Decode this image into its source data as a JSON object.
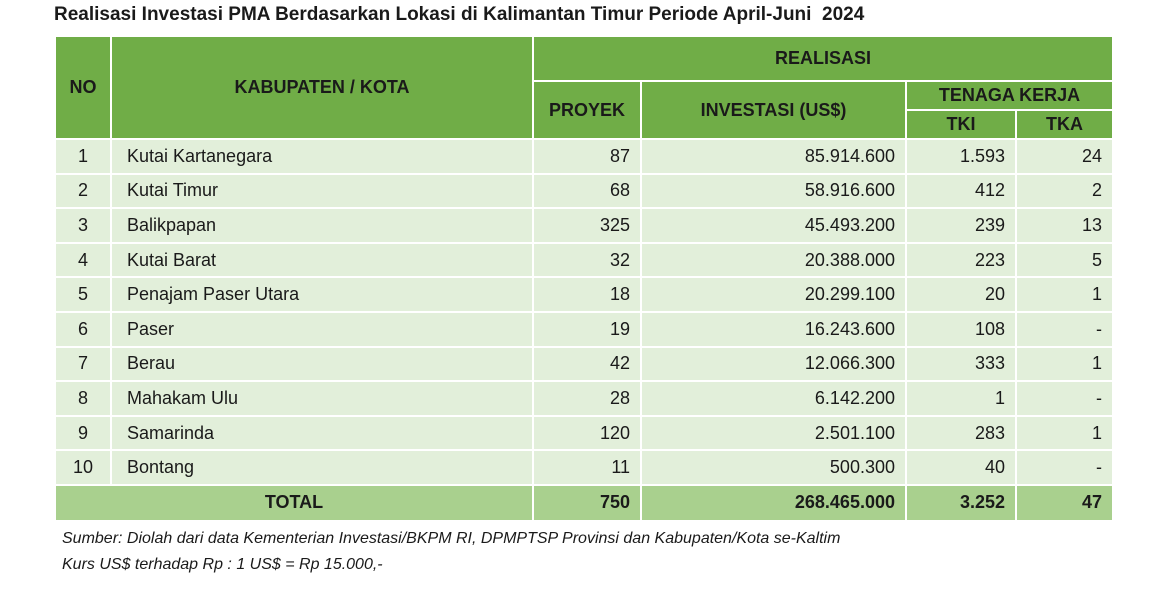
{
  "title": "Realisasi Investasi PMA Berdasarkan Lokasi di Kalimantan Timur Periode April-Juni  2024",
  "headers": {
    "no": "NO",
    "kabupaten": "KABUPATEN / KOTA",
    "realisasi": "REALISASI",
    "proyek": "PROYEK",
    "investasi": "INVESTASI (US$)",
    "tenaga_kerja": "TENAGA KERJA",
    "tki": "TKI",
    "tka": "TKA"
  },
  "rows": [
    {
      "no": "1",
      "name": "Kutai Kartanegara",
      "proyek": "87",
      "investasi": "85.914.600",
      "tki": "1.593",
      "tka": "24"
    },
    {
      "no": "2",
      "name": "Kutai Timur",
      "proyek": "68",
      "investasi": "58.916.600",
      "tki": "412",
      "tka": "2"
    },
    {
      "no": "3",
      "name": "Balikpapan",
      "proyek": "325",
      "investasi": "45.493.200",
      "tki": "239",
      "tka": "13"
    },
    {
      "no": "4",
      "name": "Kutai Barat",
      "proyek": "32",
      "investasi": "20.388.000",
      "tki": "223",
      "tka": "5"
    },
    {
      "no": "5",
      "name": "Penajam Paser Utara",
      "proyek": "18",
      "investasi": "20.299.100",
      "tki": "20",
      "tka": "1"
    },
    {
      "no": "6",
      "name": "Paser",
      "proyek": "19",
      "investasi": "16.243.600",
      "tki": "108",
      "tka": "-"
    },
    {
      "no": "7",
      "name": "Berau",
      "proyek": "42",
      "investasi": "12.066.300",
      "tki": "333",
      "tka": "1"
    },
    {
      "no": "8",
      "name": "Mahakam Ulu",
      "proyek": "28",
      "investasi": "6.142.200",
      "tki": "1",
      "tka": "-"
    },
    {
      "no": "9",
      "name": "Samarinda",
      "proyek": "120",
      "investasi": "2.501.100",
      "tki": "283",
      "tka": "1"
    },
    {
      "no": "10",
      "name": "Bontang",
      "proyek": "11",
      "investasi": "500.300",
      "tki": "40",
      "tka": "-"
    }
  ],
  "total": {
    "label": "TOTAL",
    "proyek": "750",
    "investasi": "268.465.000",
    "tki": "3.252",
    "tka": "47"
  },
  "notes": {
    "source": "Sumber: Diolah dari data Kementerian Investasi/BKPM RI, DPMPTSP Provinsi dan Kabupaten/Kota se-Kaltim",
    "kurs": "Kurs US$ terhadap Rp : 1 US$ = Rp 15.000,-"
  },
  "colors": {
    "header_green": "#70ad47",
    "row_light": "#e2efda",
    "total_green": "#a9d08e"
  }
}
